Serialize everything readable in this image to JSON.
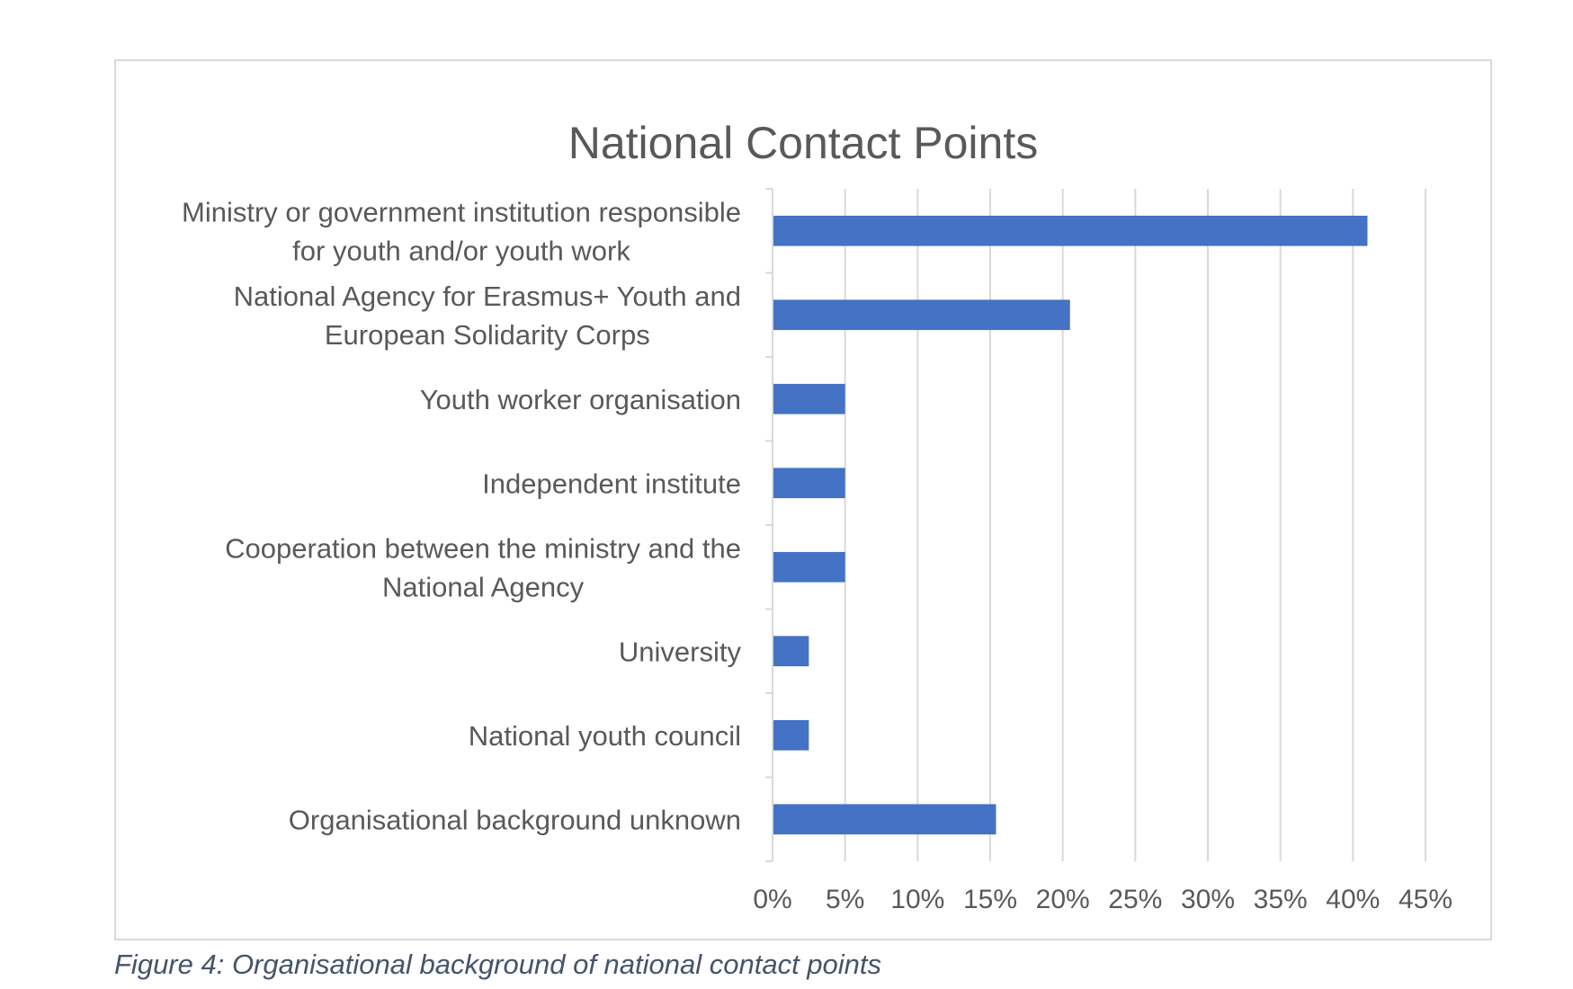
{
  "chart_data": {
    "type": "bar",
    "orientation": "horizontal",
    "title": "National Contact Points",
    "xlabel": "",
    "ylabel": "",
    "categories": [
      [
        "Ministry or government institution responsible",
        "for youth and/or youth work"
      ],
      [
        "National Agency for Erasmus+ Youth and",
        "European Solidarity Corps"
      ],
      [
        "Youth worker organisation"
      ],
      [
        "Independent institute"
      ],
      [
        "Cooperation between the ministry and the",
        "National Agency"
      ],
      [
        "University"
      ],
      [
        "National youth council"
      ],
      [
        "Organisational background unknown"
      ]
    ],
    "values": [
      41.0,
      20.5,
      5.0,
      5.0,
      5.0,
      2.5,
      2.5,
      15.4
    ],
    "xlim": [
      0,
      45
    ],
    "xticks": [
      0,
      5,
      10,
      15,
      20,
      25,
      30,
      35,
      40,
      45
    ],
    "xtick_labels": [
      "0%",
      "5%",
      "10%",
      "15%",
      "20%",
      "25%",
      "30%",
      "35%",
      "40%",
      "45%"
    ],
    "grid": true,
    "legend": "none",
    "bar_color": "#4472c4",
    "grid_color": "#d9d9d9",
    "text_color": "#595959"
  },
  "caption": "Figure 4: Organisational background of national contact points"
}
